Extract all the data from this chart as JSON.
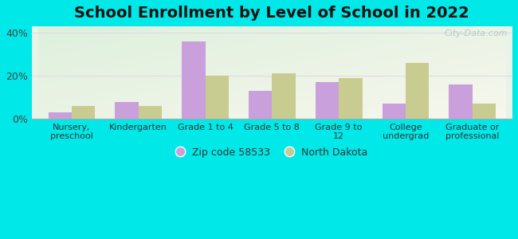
{
  "title": "School Enrollment by Level of School in 2022",
  "categories": [
    "Nursery,\npreschool",
    "Kindergarten",
    "Grade 1 to 4",
    "Grade 5 to 8",
    "Grade 9 to\n12",
    "College\nundergrad",
    "Graduate or\nprofessional"
  ],
  "zip_values": [
    3,
    8,
    36,
    13,
    17,
    7,
    16
  ],
  "nd_values": [
    6,
    6,
    20,
    21,
    19,
    26,
    7
  ],
  "zip_color": "#c9a0dc",
  "nd_color": "#c8cc90",
  "background_outer": "#00e8e8",
  "zip_label": "Zip code 58533",
  "nd_label": "North Dakota",
  "yticks": [
    0,
    20,
    40
  ],
  "ylim": [
    0,
    43
  ],
  "bar_width": 0.35,
  "title_fontsize": 14,
  "watermark": "City-Data.com",
  "grid_color": "#dddddd",
  "axis_bg_top_left": "#e8f5e8",
  "axis_bg_bottom_right": "#f8f8e8"
}
